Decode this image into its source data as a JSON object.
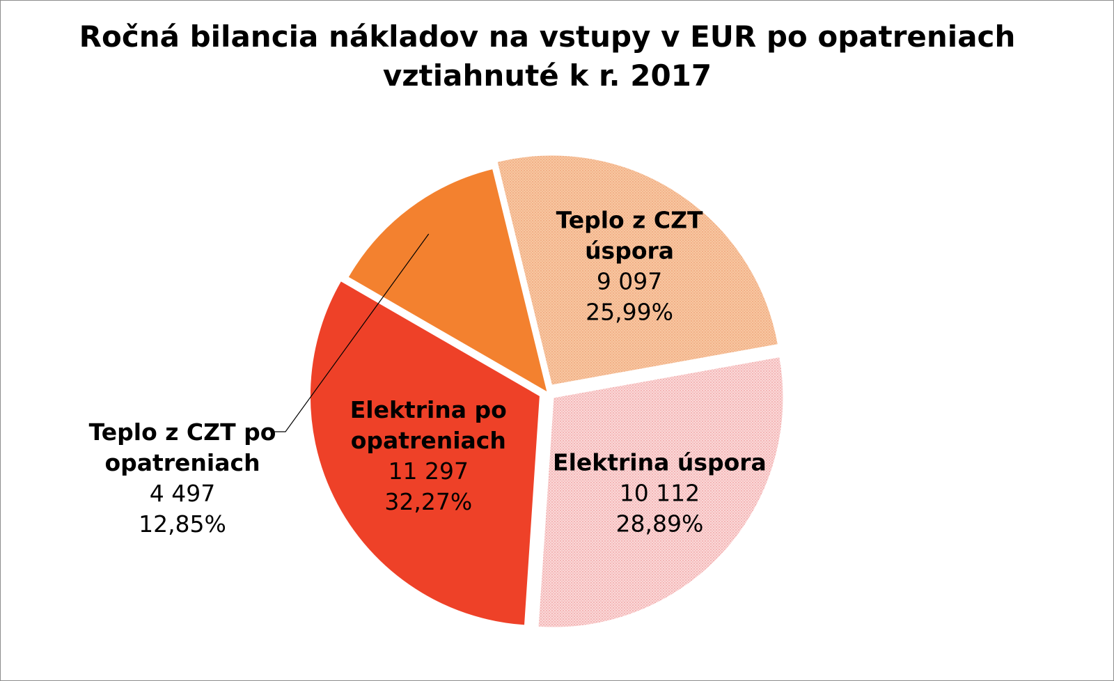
{
  "chart_data": {
    "type": "pie",
    "title": [
      "Ročná bilancia nákladov na vstupy v EUR po opatreniach",
      "vztiahnuté k r. 2017"
    ],
    "slices": [
      {
        "name": [
          "Elektrina po",
          "opatreniach"
        ],
        "value": 11297,
        "value_label": "11 297",
        "percent": 32.27,
        "percent_label": "32,27%",
        "color": "#ee4128",
        "pattern": "solid",
        "exploded": true
      },
      {
        "name": [
          "Elektrina úspora"
        ],
        "value": 10112,
        "value_label": "10 112",
        "percent": 28.89,
        "percent_label": "28,89%",
        "color": "#f9cccc",
        "pattern": "dotted",
        "exploded": true
      },
      {
        "name": [
          "Teplo z CZT",
          "úspora"
        ],
        "value": 9097,
        "value_label": "9 097",
        "percent": 25.99,
        "percent_label": "25,99%",
        "color": "#f8c39d",
        "pattern": "dotted",
        "exploded": true
      },
      {
        "name": [
          "Teplo z CZT po",
          "opatreniach"
        ],
        "value": 4497,
        "value_label": "4 497",
        "percent": 12.85,
        "percent_label": "12,85%",
        "color": "#f3812f",
        "pattern": "solid",
        "exploded": false,
        "label_outside": true
      }
    ]
  }
}
